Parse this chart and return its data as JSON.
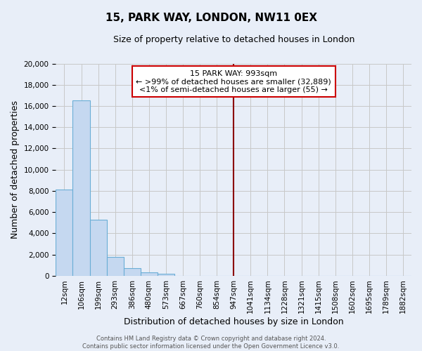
{
  "title": "15, PARK WAY, LONDON, NW11 0EX",
  "subtitle": "Size of property relative to detached houses in London",
  "xlabel": "Distribution of detached houses by size in London",
  "ylabel": "Number of detached properties",
  "bin_labels": [
    "12sqm",
    "106sqm",
    "199sqm",
    "293sqm",
    "386sqm",
    "480sqm",
    "573sqm",
    "667sqm",
    "760sqm",
    "854sqm",
    "947sqm",
    "1041sqm",
    "1134sqm",
    "1228sqm",
    "1321sqm",
    "1415sqm",
    "1508sqm",
    "1602sqm",
    "1695sqm",
    "1789sqm",
    "1882sqm"
  ],
  "bar_values": [
    8100,
    16500,
    5300,
    1800,
    700,
    300,
    200,
    0,
    0,
    0,
    0,
    0,
    0,
    0,
    0,
    0,
    0,
    0,
    0,
    0,
    0
  ],
  "bar_color": "#c5d8f0",
  "bar_edge_color": "#6aaed6",
  "vline_x_index": 10,
  "vline_color": "#8b0000",
  "ylim": [
    0,
    20000
  ],
  "yticks": [
    0,
    2000,
    4000,
    6000,
    8000,
    10000,
    12000,
    14000,
    16000,
    18000,
    20000
  ],
  "annotation_title": "15 PARK WAY: 993sqm",
  "annotation_line1": "← >99% of detached houses are smaller (32,889)",
  "annotation_line2": "<1% of semi-detached houses are larger (55) →",
  "annotation_box_facecolor": "#ffffff",
  "annotation_box_edgecolor": "#cc0000",
  "footer_line1": "Contains HM Land Registry data © Crown copyright and database right 2024.",
  "footer_line2": "Contains public sector information licensed under the Open Government Licence v3.0.",
  "background_color": "#e8eef8",
  "plot_bg_color": "#e8eef8",
  "grid_color": "#c8c8c8",
  "title_fontsize": 11,
  "subtitle_fontsize": 9,
  "tick_fontsize": 7.5,
  "label_fontsize": 9
}
